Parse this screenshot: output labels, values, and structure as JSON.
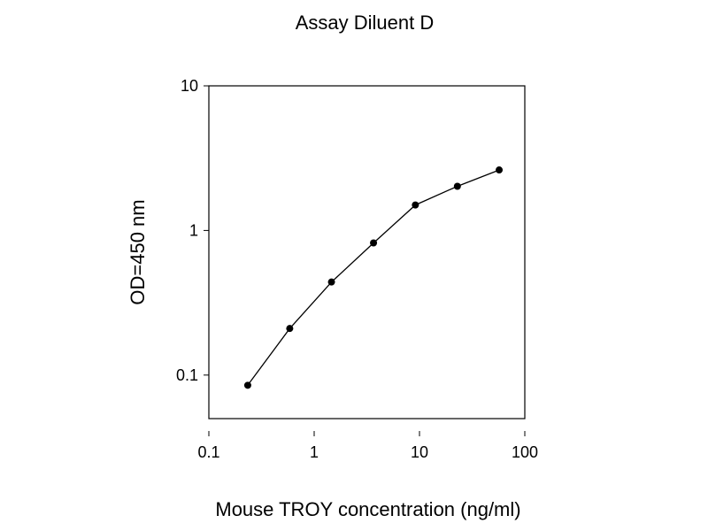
{
  "chart_data": {
    "type": "line",
    "title": "Assay Diluent D",
    "xlabel": "Mouse TROY concentration (ng/ml)",
    "ylabel": "OD=450 nm",
    "x_scale": "log",
    "y_scale": "log",
    "xlim": [
      0.1,
      100
    ],
    "ylim": [
      0.05,
      10
    ],
    "x_ticks": [
      {
        "value": 0.1,
        "label": "0.1"
      },
      {
        "value": 1,
        "label": "1"
      },
      {
        "value": 10,
        "label": "10"
      },
      {
        "value": 100,
        "label": "100"
      }
    ],
    "y_ticks": [
      {
        "value": 0.1,
        "label": "0.1"
      },
      {
        "value": 1,
        "label": "1"
      },
      {
        "value": 10,
        "label": "10"
      }
    ],
    "grid": false,
    "series": [
      {
        "color": "#000000",
        "marker": "circle",
        "x": [
          0.234,
          0.586,
          1.46,
          3.66,
          9.14,
          22.9,
          57.1
        ],
        "y": [
          0.085,
          0.21,
          0.44,
          0.82,
          1.5,
          2.02,
          2.62
        ]
      }
    ]
  }
}
